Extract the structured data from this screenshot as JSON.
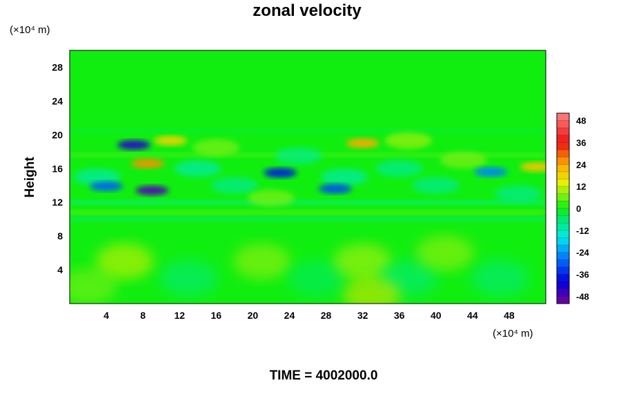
{
  "chart_data": {
    "type": "heatmap",
    "title": "zonal velocity",
    "ylabel": "Height",
    "xlabel": "",
    "x_unit_label": "(×10⁴ m)",
    "y_unit_label": "(×10⁴ m)",
    "xlim": [
      0,
      52
    ],
    "ylim": [
      0,
      30
    ],
    "x_ticks": [
      4,
      8,
      12,
      16,
      20,
      24,
      28,
      32,
      36,
      40,
      44,
      48
    ],
    "y_ticks": [
      4,
      8,
      12,
      16,
      20,
      24,
      28
    ],
    "colorbar": {
      "range": [
        -52,
        52
      ],
      "ticks": [
        48,
        36,
        24,
        12,
        0,
        -12,
        -24,
        -36,
        -48
      ],
      "interval": 4,
      "colormap": "rainbow"
    },
    "features": [
      {
        "x": 7,
        "z": 18.8,
        "value": -44
      },
      {
        "x": 9,
        "z": 13.4,
        "value": -48
      },
      {
        "x": 4,
        "z": 13.9,
        "value": -30
      },
      {
        "x": 23,
        "z": 15.5,
        "value": -38
      },
      {
        "x": 29,
        "z": 13.6,
        "value": -32
      },
      {
        "x": 46,
        "z": 15.6,
        "value": -26
      },
      {
        "x": 8.5,
        "z": 16.6,
        "value": 26
      },
      {
        "x": 32,
        "z": 19.0,
        "value": 24
      },
      {
        "x": 51,
        "z": 16.2,
        "value": 20
      },
      {
        "x": 11,
        "z": 19.3,
        "value": 18
      }
    ]
  },
  "footer": {
    "time_label": "TIME = 4002000.0"
  }
}
